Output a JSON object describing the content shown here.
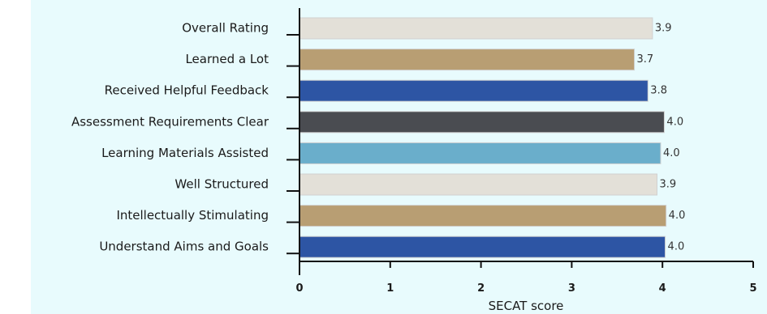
{
  "chart_data": {
    "type": "bar",
    "orientation": "horizontal",
    "categories": [
      "Overall Rating",
      "Learned a Lot",
      "Received Helpful Feedback",
      "Assessment Requirements Clear",
      "Learning Materials Assisted",
      "Well Structured",
      "Intellectually Stimulating",
      "Understand Aims and Goals"
    ],
    "values": [
      3.9,
      3.7,
      3.8,
      4.0,
      4.0,
      3.9,
      4.0,
      4.0
    ],
    "data_labels": [
      "3.9",
      "3.7",
      "3.8",
      "4.0",
      "4.0",
      "3.9",
      "4.0",
      "4.0"
    ],
    "bar_values_precise": [
      3.89,
      3.69,
      3.84,
      4.02,
      3.98,
      3.94,
      4.04,
      4.03
    ],
    "colors": [
      "#e3e0d8",
      "#b89e73",
      "#2d55a4",
      "#4a4c51",
      "#6aaecb",
      "#e3e0d8",
      "#b89e73",
      "#2d55a4"
    ],
    "xlabel": "SECAT score",
    "ylabel": "",
    "title": "",
    "xlim": [
      0,
      5
    ],
    "xticks": [
      0,
      1,
      2,
      3,
      4,
      5
    ],
    "xtick_labels": [
      "0",
      "1",
      "2",
      "3",
      "4",
      "5"
    ],
    "grid": false,
    "legend": "none"
  },
  "style": {
    "plot_background": "#e8fbfd",
    "axis_color": "#111111",
    "bar_outline": "#d0d0d0"
  }
}
